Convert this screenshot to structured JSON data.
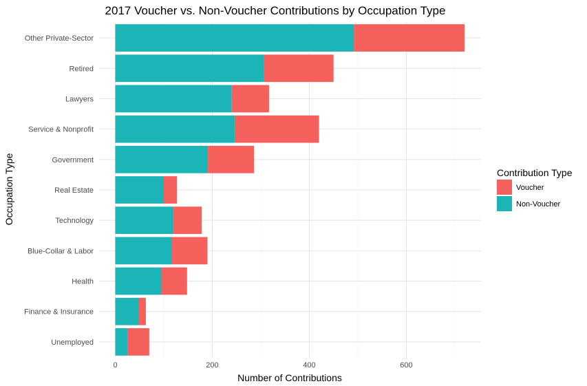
{
  "chart_data": {
    "type": "bar",
    "orientation": "horizontal",
    "stacked": true,
    "title": "2017 Voucher vs. Non-Voucher Contributions by Occupation Type",
    "xlabel": "Number of Contributions",
    "ylabel": "Occupation Type",
    "categories": [
      "Other Private-Sector",
      "Retired",
      "Lawyers",
      "Service & Nonprofit",
      "Government",
      "Real Estate",
      "Technology",
      "Blue-Collar & Labor",
      "Health",
      "Finance & Insurance",
      "Unemployed"
    ],
    "series": [
      {
        "name": "Non-Voucher",
        "color": "#1bb5b8",
        "values": [
          492,
          307,
          240,
          246,
          191,
          100,
          120,
          117,
          95,
          49,
          25
        ]
      },
      {
        "name": "Voucher",
        "color": "#f5605d",
        "values": [
          228,
          143,
          77,
          174,
          95,
          27,
          58,
          73,
          53,
          14,
          45
        ]
      }
    ],
    "xlim": [
      0,
      750
    ],
    "xticks": [
      0,
      200,
      400,
      600
    ],
    "grid": true,
    "legend": {
      "title": "Contribution Type",
      "position": "right",
      "items": [
        {
          "label": "Voucher",
          "color": "#f5605d"
        },
        {
          "label": "Non-Voucher",
          "color": "#1bb5b8"
        }
      ]
    }
  }
}
